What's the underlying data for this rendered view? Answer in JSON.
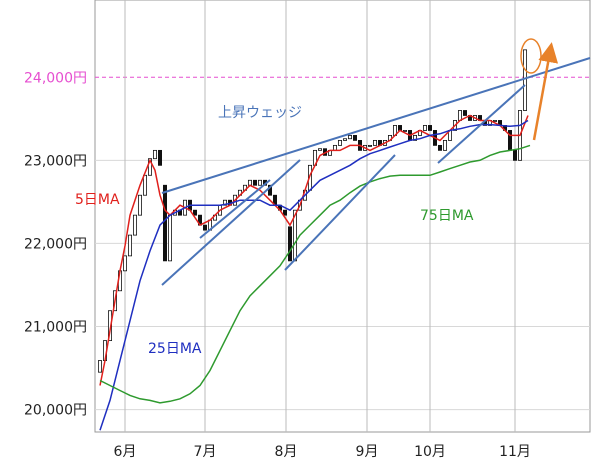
{
  "chart_data": {
    "type": "candlestick",
    "annotations": [
      "上昇ウェッジ"
    ],
    "xlim": [
      0,
      99
    ],
    "xticks": [
      {
        "value": 6,
        "label": "6月"
      },
      {
        "value": 22,
        "label": "7月"
      },
      {
        "value": 38.2,
        "label": "8月"
      },
      {
        "value": 54.4,
        "label": "9月"
      },
      {
        "value": 67,
        "label": "10月"
      },
      {
        "value": 84,
        "label": "11月"
      }
    ],
    "ylim": [
      19730,
      24930
    ],
    "yticks": [
      {
        "value": 20000,
        "label": "20,000円"
      },
      {
        "value": 21000,
        "label": "21,000円"
      },
      {
        "value": 22000,
        "label": "22,000円"
      },
      {
        "value": 23000,
        "label": "23,000円"
      },
      {
        "value": 24000,
        "label": "24,000円"
      }
    ],
    "grid": true,
    "reference_line": {
      "value": 24000,
      "color": "#e64fd0"
    },
    "candles": {
      "x": [
        1,
        2,
        3,
        4,
        5,
        6,
        7,
        8,
        9,
        10,
        11,
        12,
        13,
        14,
        15,
        16,
        17,
        18,
        19,
        20,
        21,
        22,
        23,
        24,
        25,
        26,
        27,
        28,
        29,
        30,
        31,
        32,
        33,
        34,
        35,
        36,
        37,
        38,
        39,
        40,
        41,
        42,
        43,
        44,
        45,
        46,
        47,
        48,
        49,
        50,
        51,
        52,
        53,
        54,
        55,
        56,
        57,
        58,
        59,
        60,
        61,
        62,
        63,
        64,
        65,
        66,
        67,
        68,
        69,
        70,
        71,
        72,
        73,
        74,
        75,
        76,
        77,
        78,
        79,
        80,
        81,
        82,
        83,
        84,
        85,
        86
      ],
      "open": [
        20450,
        20590,
        20830,
        21190,
        21430,
        21670,
        21850,
        22100,
        22340,
        22580,
        22820,
        23020,
        23120,
        22700,
        21790,
        22340,
        22400,
        22340,
        22520,
        22400,
        22340,
        22220,
        22160,
        22280,
        22340,
        22460,
        22520,
        22460,
        22580,
        22640,
        22700,
        22760,
        22700,
        22760,
        22700,
        22580,
        22460,
        22400,
        22200,
        21790,
        22400,
        22520,
        22640,
        22940,
        23120,
        23140,
        23060,
        23120,
        23180,
        23240,
        23260,
        23300,
        23240,
        23120,
        23180,
        23180,
        23240,
        23180,
        23240,
        23300,
        23420,
        23360,
        23360,
        23240,
        23300,
        23360,
        23420,
        23360,
        23180,
        23120,
        23240,
        23360,
        23480,
        23600,
        23540,
        23480,
        23540,
        23480,
        23420,
        23480,
        23480,
        23420,
        23360,
        23120,
        23000,
        23600
      ],
      "close": [
        20590,
        20830,
        21190,
        21430,
        21670,
        21850,
        22100,
        22340,
        22580,
        22820,
        23020,
        23120,
        22940,
        21790,
        22340,
        22400,
        22340,
        22520,
        22400,
        22340,
        22220,
        22160,
        22280,
        22340,
        22460,
        22520,
        22460,
        22580,
        22640,
        22700,
        22760,
        22700,
        22760,
        22700,
        22580,
        22460,
        22400,
        22340,
        21790,
        22400,
        22520,
        22640,
        22940,
        23120,
        23140,
        23060,
        23120,
        23180,
        23240,
        23260,
        23300,
        23240,
        23120,
        23180,
        23180,
        23240,
        23180,
        23240,
        23300,
        23420,
        23360,
        23360,
        23240,
        23300,
        23360,
        23420,
        23360,
        23180,
        23120,
        23240,
        23360,
        23480,
        23600,
        23540,
        23480,
        23540,
        23480,
        23420,
        23480,
        23480,
        23420,
        23360,
        23120,
        23000,
        23600,
        24330
      ]
    },
    "series": [
      {
        "name": "5日MA",
        "color": "#e0201c",
        "x": [
          1,
          2,
          3,
          4,
          5,
          6,
          7,
          9,
          11,
          12,
          13,
          14,
          15,
          17,
          19,
          21,
          23,
          25,
          27,
          29,
          31,
          33,
          35,
          37,
          39,
          40,
          41,
          43,
          45,
          47,
          49,
          51,
          53,
          55,
          57,
          59,
          61,
          63,
          65,
          67,
          69,
          71,
          73,
          75,
          77,
          79,
          81,
          83,
          85,
          86.6
        ],
        "values": [
          20290,
          20590,
          20950,
          21310,
          21670,
          21970,
          22340,
          22700,
          23000,
          22880,
          22580,
          22400,
          22340,
          22460,
          22400,
          22220,
          22280,
          22400,
          22460,
          22580,
          22700,
          22640,
          22520,
          22400,
          22220,
          22340,
          22460,
          22820,
          23060,
          23120,
          23120,
          23180,
          23180,
          23120,
          23180,
          23240,
          23360,
          23300,
          23360,
          23300,
          23240,
          23360,
          23480,
          23540,
          23480,
          23480,
          23420,
          23300,
          23300,
          23540
        ]
      },
      {
        "name": "25日MA",
        "color": "#1f2fc0",
        "x": [
          1,
          3,
          5,
          7,
          9,
          11,
          13,
          15,
          17,
          19,
          21,
          23,
          25,
          27,
          29,
          31,
          33,
          35,
          37,
          39,
          41,
          43,
          45,
          47,
          49,
          51,
          53,
          55,
          57,
          59,
          61,
          63,
          65,
          67,
          69,
          71,
          73,
          75,
          77,
          79,
          81,
          83,
          85,
          86.6
        ],
        "values": [
          19750,
          20110,
          20590,
          21070,
          21550,
          21910,
          22220,
          22340,
          22400,
          22460,
          22460,
          22460,
          22460,
          22480,
          22520,
          22520,
          22520,
          22460,
          22460,
          22400,
          22520,
          22640,
          22760,
          22820,
          22880,
          22940,
          23020,
          23080,
          23120,
          23160,
          23200,
          23240,
          23260,
          23300,
          23320,
          23360,
          23380,
          23410,
          23430,
          23430,
          23420,
          23410,
          23420,
          23480
        ]
      },
      {
        "name": "75日MA",
        "color": "#2e9a2e",
        "x": [
          1,
          3,
          5,
          7,
          9,
          11,
          13,
          15,
          17,
          19,
          21,
          23,
          25,
          27,
          29,
          31,
          33,
          35,
          37,
          39,
          41,
          43,
          45,
          47,
          49,
          51,
          53,
          55,
          57,
          59,
          61,
          63,
          65,
          67,
          69,
          71,
          73,
          75,
          77,
          79,
          81,
          83,
          85,
          87
        ],
        "values": [
          20350,
          20290,
          20230,
          20170,
          20130,
          20110,
          20080,
          20100,
          20130,
          20190,
          20290,
          20470,
          20710,
          20950,
          21190,
          21370,
          21490,
          21610,
          21730,
          21910,
          22100,
          22220,
          22340,
          22460,
          22520,
          22610,
          22690,
          22740,
          22780,
          22810,
          22820,
          22820,
          22820,
          22820,
          22860,
          22900,
          22940,
          22980,
          23000,
          23060,
          23100,
          23120,
          23140,
          23180
        ]
      }
    ]
  }
}
